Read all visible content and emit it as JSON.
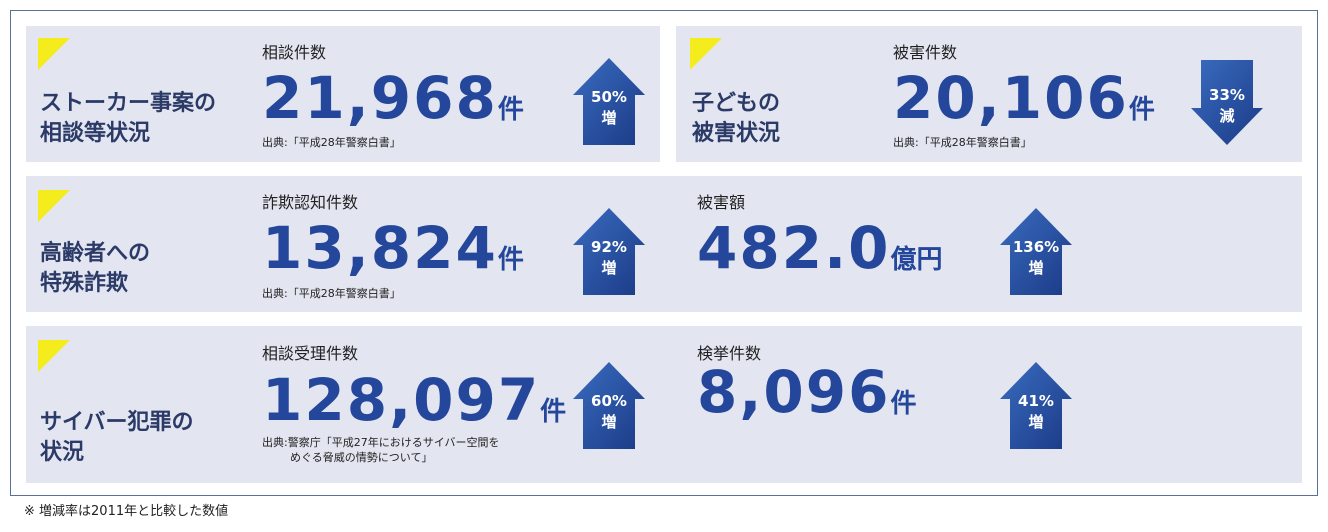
{
  "sections": [
    {
      "title": [
        "ストーカー事案の",
        "相談等状況"
      ],
      "stats": [
        {
          "label": "相談件数",
          "value": "21,968",
          "unit": "件",
          "source": [
            "出典:「平成28年警察白書」"
          ],
          "change": "50%",
          "direction": "増"
        }
      ]
    },
    {
      "title": [
        "子どもの",
        "被害状況"
      ],
      "stats": [
        {
          "label": "被害件数",
          "value": "20,106",
          "unit": "件",
          "source": [
            "出典:「平成28年警察白書」"
          ],
          "change": "33%",
          "direction": "減"
        }
      ]
    },
    {
      "title": [
        "高齢者への",
        "特殊詐欺"
      ],
      "stats": [
        {
          "label": "詐欺認知件数",
          "value": "13,824",
          "unit": "件",
          "source": [
            "出典:「平成28年警察白書」"
          ],
          "change": "92%",
          "direction": "増"
        },
        {
          "label": "被害額",
          "value": "482.0",
          "unit": "億円",
          "change": "136%",
          "direction": "増"
        }
      ]
    },
    {
      "title": [
        "サイバー犯罪の",
        "状況"
      ],
      "stats": [
        {
          "label": "相談受理件数",
          "value": "128,097",
          "unit": "件",
          "source": [
            "出典:警察庁「平成27年におけるサイバー空間を",
            "めぐる脅威の情勢について」"
          ],
          "change": "60%",
          "direction": "増"
        },
        {
          "label": "検挙件数",
          "value": "8,096",
          "unit": "件",
          "change": "41%",
          "direction": "増"
        }
      ]
    }
  ],
  "note": "※ 増減率は2011年と比較した数値"
}
